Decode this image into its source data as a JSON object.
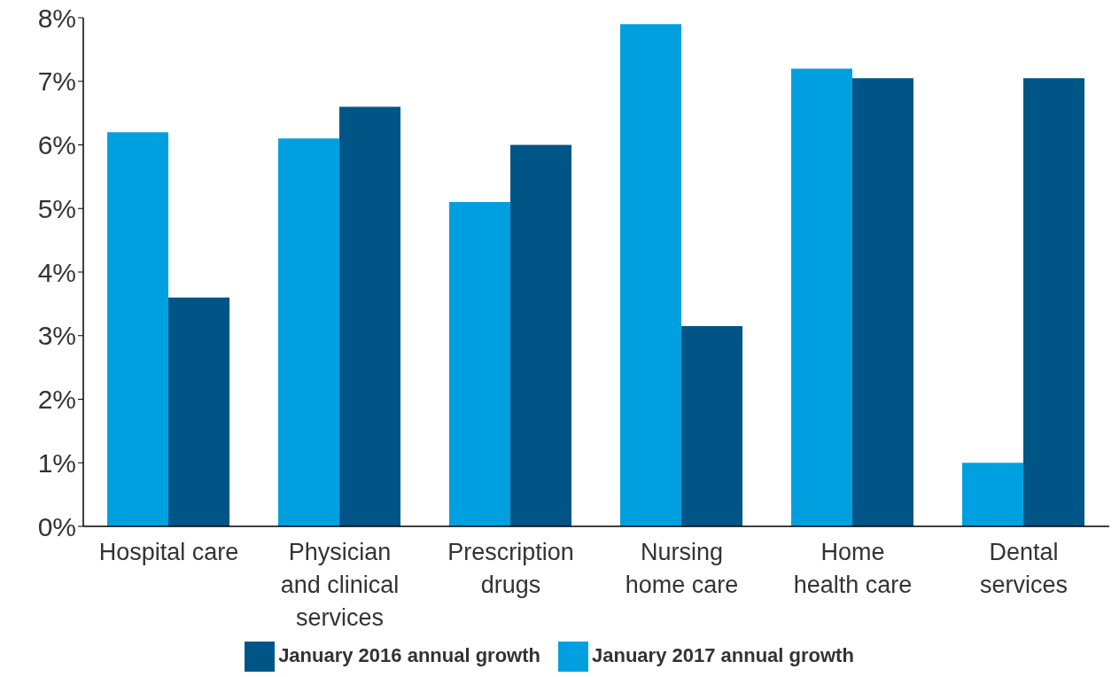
{
  "chart_data": {
    "type": "bar",
    "categories": [
      "Hospital care",
      "Physician\nand clinical\nservices",
      "Prescription\ndrugs",
      "Nursing\nhome care",
      "Home\nhealth care",
      "Dental\nservices"
    ],
    "series": [
      {
        "name": "January 2017 annual growth",
        "color": "#00a0e0",
        "values": [
          6.2,
          6.1,
          5.1,
          7.9,
          7.2,
          1.0
        ]
      },
      {
        "name": "January 2016 annual growth",
        "color": "#005587",
        "values": [
          3.6,
          6.6,
          6.0,
          3.15,
          7.05,
          7.05
        ]
      }
    ],
    "ylim": [
      0,
      8
    ],
    "yticks": [
      {
        "value": 0,
        "label": "0%"
      },
      {
        "value": 1,
        "label": "1%"
      },
      {
        "value": 2,
        "label": "2%"
      },
      {
        "value": 3,
        "label": "3%"
      },
      {
        "value": 4,
        "label": "4%"
      },
      {
        "value": 5,
        "label": "5%"
      },
      {
        "value": 6,
        "label": "6%"
      },
      {
        "value": 7,
        "label": "7%"
      },
      {
        "value": 8,
        "label": "8%"
      }
    ],
    "grid": false,
    "legend": "bottom"
  }
}
